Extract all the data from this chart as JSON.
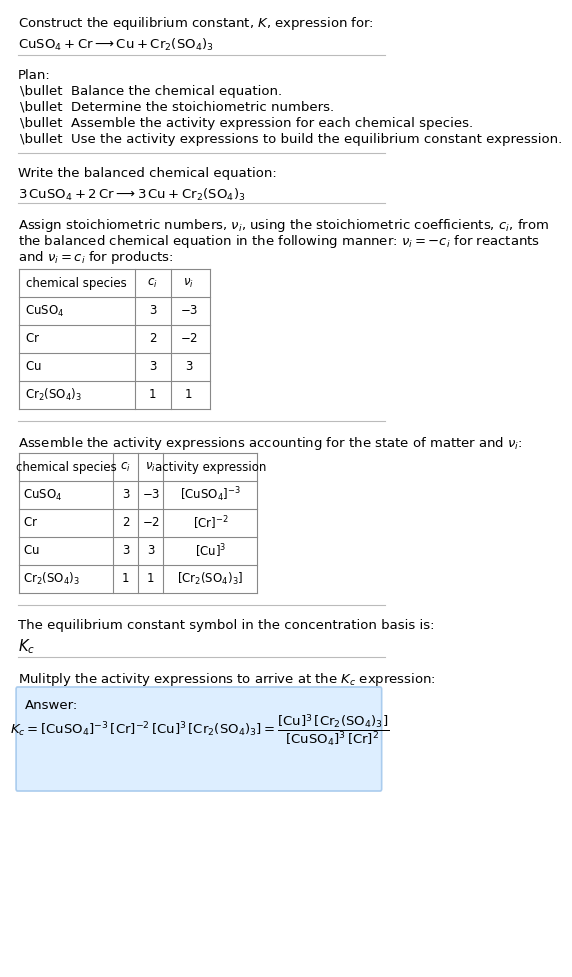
{
  "title_line1": "Construct the equilibrium constant, $K$, expression for:",
  "title_line2": "$\\mathrm{CuSO_4 + Cr \\longrightarrow Cu + Cr_2(SO_4)_3}$",
  "plan_header": "Plan:",
  "plan_bullets": [
    "\\bullet  Balance the chemical equation.",
    "\\bullet  Determine the stoichiometric numbers.",
    "\\bullet  Assemble the activity expression for each chemical species.",
    "\\bullet  Use the activity expressions to build the equilibrium constant expression."
  ],
  "balanced_header": "Write the balanced chemical equation:",
  "balanced_eq": "$\\mathrm{3\\, CuSO_4 + 2\\, Cr \\longrightarrow 3\\, Cu + Cr_2(SO_4)_3}$",
  "stoich_header": "Assign stoichiometric numbers, $\\nu_i$, using the stoichiometric coefficients, $c_i$, from\nthe balanced chemical equation in the following manner: $\\nu_i = -c_i$ for reactants\nand $\\nu_i = c_i$ for products:",
  "table1_headers": [
    "chemical species",
    "$c_i$",
    "$\\nu_i$"
  ],
  "table1_data": [
    [
      "$\\mathrm{CuSO_4}$",
      "3",
      "$-3$"
    ],
    [
      "$\\mathrm{Cr}$",
      "2",
      "$-2$"
    ],
    [
      "$\\mathrm{Cu}$",
      "3",
      "3"
    ],
    [
      "$\\mathrm{Cr_2(SO_4)_3}$",
      "1",
      "1"
    ]
  ],
  "activity_header": "Assemble the activity expressions accounting for the state of matter and $\\nu_i$:",
  "table2_headers": [
    "chemical species",
    "$c_i$",
    "$\\nu_i$",
    "activity expression"
  ],
  "table2_data": [
    [
      "$\\mathrm{CuSO_4}$",
      "3",
      "$-3$",
      "$[\\mathrm{CuSO_4}]^{-3}$"
    ],
    [
      "$\\mathrm{Cr}$",
      "2",
      "$-2$",
      "$[\\mathrm{Cr}]^{-2}$"
    ],
    [
      "$\\mathrm{Cu}$",
      "3",
      "3",
      "$[\\mathrm{Cu}]^3$"
    ],
    [
      "$\\mathrm{Cr_2(SO_4)_3}$",
      "1",
      "1",
      "$[\\mathrm{Cr_2(SO_4)_3}]$"
    ]
  ],
  "kc_header": "The equilibrium constant symbol in the concentration basis is:",
  "kc_symbol": "$K_c$",
  "multiply_header": "Mulitply the activity expressions to arrive at the $K_c$ expression:",
  "answer_label": "Answer:",
  "kc_expr_line1": "$K_c = [\\mathrm{CuSO_4}]^{-3}\\,[\\mathrm{Cr}]^{-2}\\,[\\mathrm{Cu}]^3\\,[\\mathrm{Cr_2(SO_4)_3}] = \\dfrac{[\\mathrm{Cu}]^3\\,[\\mathrm{Cr_2(SO_4)_3}]}{[\\mathrm{CuSO_4}]^3\\,[\\mathrm{Cr}]^2}$",
  "bg_color": "#ffffff",
  "answer_box_color": "#ddeeff",
  "answer_box_edge": "#aaccee",
  "table_line_color": "#888888",
  "text_color": "#000000",
  "font_size": 9.5,
  "small_font": 8.5
}
